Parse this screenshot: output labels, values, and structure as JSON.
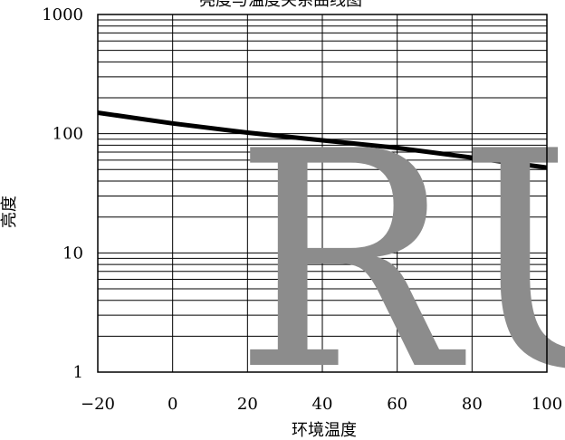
{
  "chart_data": {
    "type": "line",
    "title": "亮度与温度关系曲线图",
    "xlabel": "环境温度",
    "ylabel": "亮度",
    "x_scale": "linear",
    "y_scale": "log",
    "xlim": [
      -20,
      100
    ],
    "ylim": [
      1,
      1000
    ],
    "x_ticks": [
      -20,
      0,
      20,
      40,
      60,
      80,
      100
    ],
    "y_ticks": [
      1,
      10,
      100,
      1000
    ],
    "grid": true,
    "series": [
      {
        "color": "#000000",
        "x": [
          -20,
          0,
          20,
          40,
          60,
          80,
          100
        ],
        "y": [
          150,
          122,
          102,
          88,
          76,
          63,
          52
        ]
      }
    ]
  },
  "watermark": {
    "text": "RUN."
  }
}
